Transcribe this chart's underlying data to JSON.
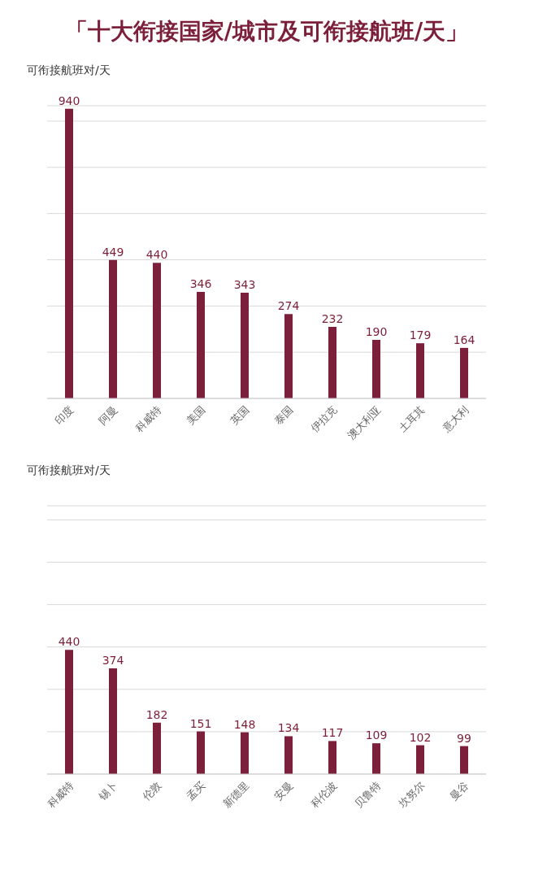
{
  "chart_data": [
    {
      "type": "bar",
      "title": "「十大衔接国家/城市及可衔接航班/天」",
      "ylabel": "可衔接航班对/天",
      "categories": [
        "印度",
        "阿曼",
        "科威特",
        "美国",
        "英国",
        "泰国",
        "伊拉克",
        "澳大利亚",
        "土耳其",
        "意大利"
      ],
      "values": [
        940,
        449,
        440,
        346,
        343,
        274,
        232,
        190,
        179,
        164
      ],
      "color": "#7b1f3a",
      "ylim": [
        0,
        950
      ],
      "grid": "y",
      "tick_labels": "x",
      "data_labels": true
    },
    {
      "type": "bar",
      "ylabel": "可衔接航班对/天",
      "categories": [
        "科威特",
        "锡卜",
        "伦敦",
        "孟买",
        "新德里",
        "安曼",
        "科伦波",
        "贝鲁特",
        "坎努尔",
        "曼谷"
      ],
      "values": [
        440,
        374,
        182,
        151,
        148,
        134,
        117,
        109,
        102,
        99
      ],
      "color": "#7b1f3a",
      "ylim": [
        0,
        950
      ],
      "grid": "y",
      "tick_labels": "x",
      "data_labels": true
    }
  ]
}
